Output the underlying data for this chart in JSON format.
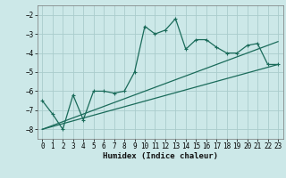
{
  "title": "",
  "xlabel": "Humidex (Indice chaleur)",
  "bg_color": "#cce8e8",
  "grid_color": "#aacccc",
  "line_color": "#1a6b5a",
  "x_main": [
    0,
    1,
    2,
    3,
    4,
    5,
    6,
    7,
    8,
    9,
    10,
    11,
    12,
    13,
    14,
    15,
    16,
    17,
    18,
    19,
    20,
    21,
    22,
    23
  ],
  "y_zigzag": [
    -6.5,
    -7.2,
    -8.0,
    -6.2,
    -7.5,
    -6.0,
    -6.0,
    -6.1,
    -6.0,
    -5.0,
    -2.6,
    -3.0,
    -2.8,
    -2.2,
    -3.8,
    -3.3,
    -3.3,
    -3.7,
    -4.0,
    -4.0,
    -3.6,
    -3.5,
    -4.6,
    -4.6
  ],
  "trend1_x": [
    0,
    23
  ],
  "trend1_y": [
    -8.0,
    -4.6
  ],
  "trend2_x": [
    0,
    23
  ],
  "trend2_y": [
    -8.0,
    -3.4
  ],
  "ylim": [
    -8.5,
    -1.5
  ],
  "xlim": [
    -0.5,
    23.5
  ],
  "yticks": [
    -8,
    -7,
    -6,
    -5,
    -4,
    -3,
    -2
  ],
  "xticks": [
    0,
    1,
    2,
    3,
    4,
    5,
    6,
    7,
    8,
    9,
    10,
    11,
    12,
    13,
    14,
    15,
    16,
    17,
    18,
    19,
    20,
    21,
    22,
    23
  ]
}
